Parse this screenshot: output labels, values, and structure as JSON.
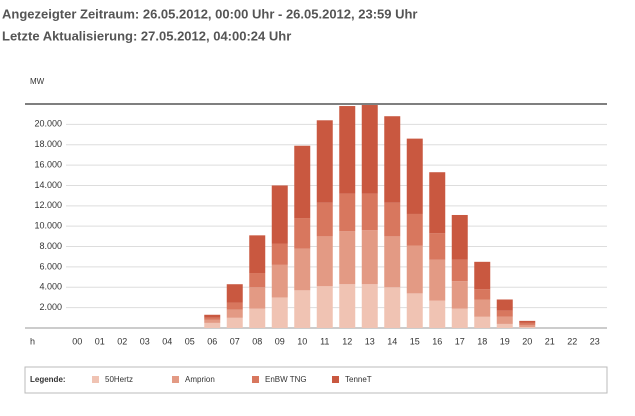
{
  "header": {
    "period": "Angezeigter Zeitraum: 26.05.2012, 00:00 Uhr - 26.05.2012, 23:59 Uhr",
    "updated": "Letzte Aktualisierung: 27.05.2012, 04:00:24 Uhr"
  },
  "chart_data": {
    "type": "stacked-bar",
    "y_label": "MW",
    "x_label": "h",
    "legend_title": "Legende:",
    "legend": "bottom",
    "grid": true,
    "categories": [
      "00",
      "01",
      "02",
      "03",
      "04",
      "05",
      "06",
      "07",
      "08",
      "09",
      "10",
      "11",
      "12",
      "13",
      "14",
      "15",
      "16",
      "17",
      "18",
      "19",
      "20",
      "21",
      "22",
      "23"
    ],
    "series": [
      {
        "name": "50Hertz",
        "color": "#f0c3b3",
        "values": [
          0,
          0,
          0,
          0,
          0,
          0,
          500,
          1000,
          1900,
          3000,
          3700,
          4100,
          4300,
          4300,
          4000,
          3400,
          2700,
          1900,
          1100,
          400,
          100,
          0,
          0,
          0
        ]
      },
      {
        "name": "Amprion",
        "color": "#e39a84",
        "values": [
          0,
          0,
          0,
          0,
          0,
          0,
          300,
          800,
          2100,
          3200,
          4100,
          4900,
          5200,
          5300,
          5000,
          4700,
          4000,
          2700,
          1700,
          700,
          200,
          0,
          0,
          0
        ]
      },
      {
        "name": "EnBW TNG",
        "color": "#d8775e",
        "values": [
          0,
          0,
          0,
          0,
          0,
          0,
          200,
          700,
          1400,
          2100,
          3000,
          3300,
          3700,
          3600,
          3300,
          3100,
          2600,
          2100,
          1000,
          600,
          200,
          0,
          0,
          0
        ]
      },
      {
        "name": "TenneT",
        "color": "#c95840",
        "values": [
          0,
          0,
          0,
          0,
          0,
          0,
          300,
          1800,
          3700,
          5700,
          7100,
          8100,
          8600,
          8700,
          8500,
          7400,
          6000,
          4400,
          2700,
          1100,
          200,
          0,
          0,
          0
        ]
      }
    ],
    "ylim": [
      0,
      22000
    ],
    "yticks": [
      {
        "value": 2000,
        "label": "2.000"
      },
      {
        "value": 4000,
        "label": "4.000"
      },
      {
        "value": 6000,
        "label": "6.000"
      },
      {
        "value": 8000,
        "label": "8.000"
      },
      {
        "value": 10000,
        "label": "10.000"
      },
      {
        "value": 12000,
        "label": "12.000"
      },
      {
        "value": 14000,
        "label": "14.000"
      },
      {
        "value": 16000,
        "label": "16.000"
      },
      {
        "value": 18000,
        "label": "18.000"
      },
      {
        "value": 20000,
        "label": "20.000"
      }
    ]
  }
}
